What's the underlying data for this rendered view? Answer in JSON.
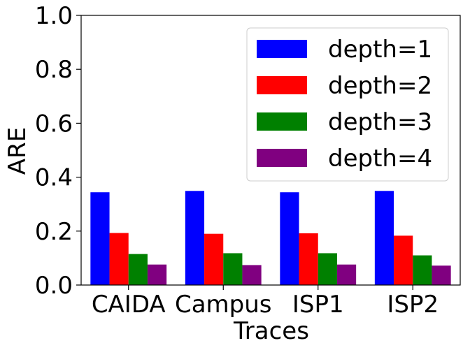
{
  "chart_data": {
    "type": "bar",
    "title": "",
    "xlabel": "Traces",
    "ylabel": "ARE",
    "categories": [
      "CAIDA",
      "Campus",
      "ISP1",
      "ISP2"
    ],
    "ylim": [
      0.0,
      1.0
    ],
    "yticks": [
      "0.0",
      "0.2",
      "0.4",
      "0.6",
      "0.8",
      "1.0"
    ],
    "grid": false,
    "legend_position": "top-right",
    "series": [
      {
        "name": "depth=1",
        "color": "#0000ff",
        "values": [
          0.344,
          0.349,
          0.344,
          0.349
        ]
      },
      {
        "name": "depth=2",
        "color": "#ff0000",
        "values": [
          0.193,
          0.19,
          0.192,
          0.183
        ]
      },
      {
        "name": "depth=3",
        "color": "#008000",
        "values": [
          0.115,
          0.118,
          0.118,
          0.11
        ]
      },
      {
        "name": "depth=4",
        "color": "#800080",
        "values": [
          0.076,
          0.074,
          0.076,
          0.072
        ]
      }
    ]
  }
}
